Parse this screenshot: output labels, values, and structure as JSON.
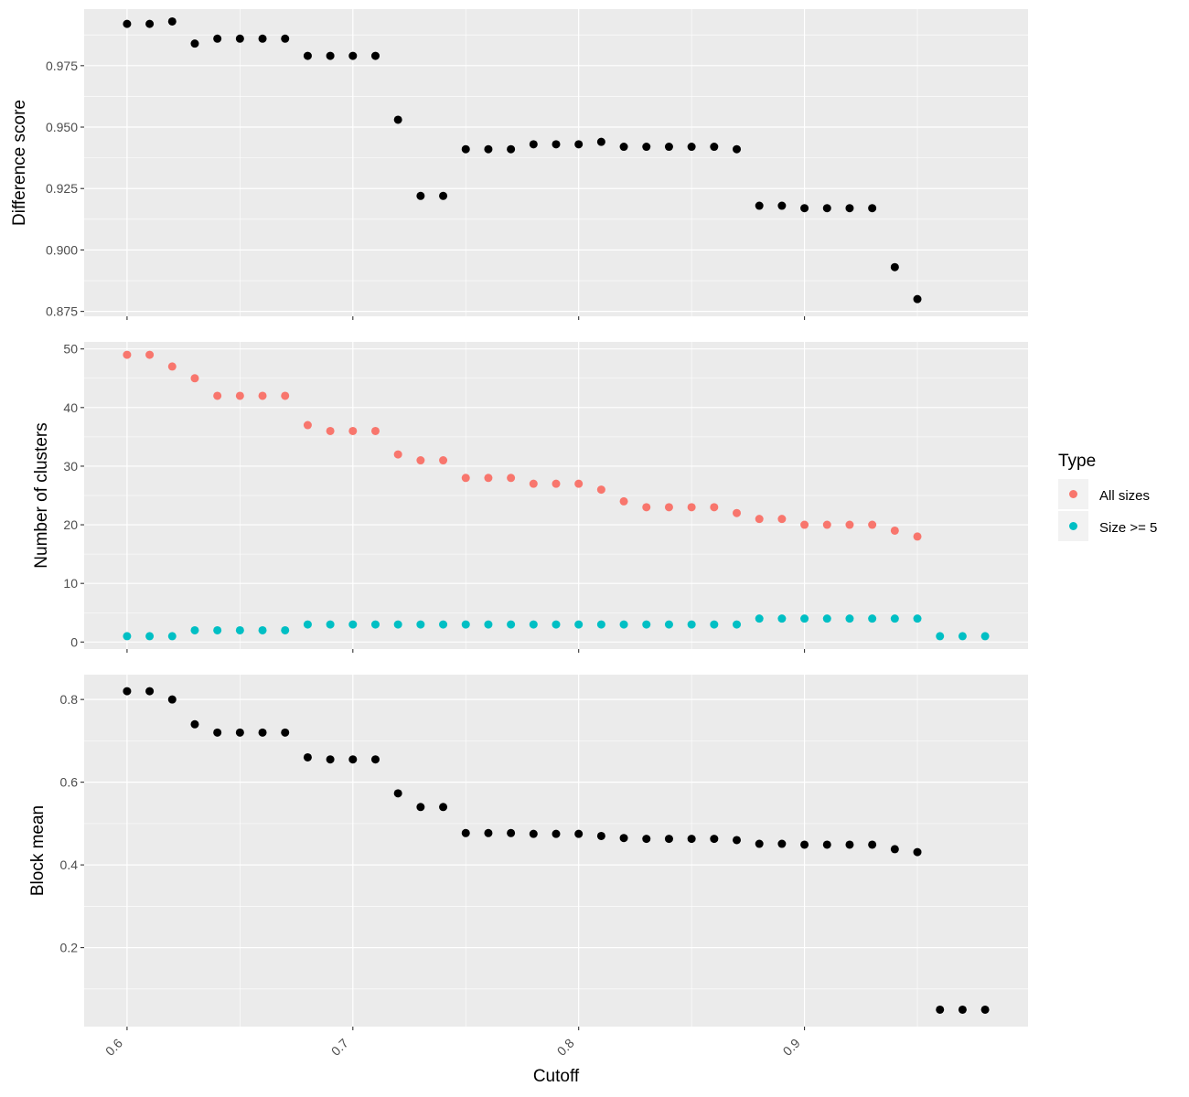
{
  "chart_data": [
    {
      "type": "scatter",
      "ylabel": "Difference score",
      "ylim": [
        0.873,
        0.998
      ],
      "yticks": [
        "0.875",
        "0.900",
        "0.925",
        "0.950",
        "0.975"
      ],
      "series": [
        {
          "color": "#000000",
          "x": [
            0.6,
            0.61,
            0.62,
            0.63,
            0.64,
            0.65,
            0.66,
            0.67,
            0.68,
            0.69,
            0.7,
            0.71,
            0.72,
            0.73,
            0.74,
            0.75,
            0.76,
            0.77,
            0.78,
            0.79,
            0.8,
            0.81,
            0.82,
            0.83,
            0.84,
            0.85,
            0.86,
            0.87,
            0.88,
            0.89,
            0.9,
            0.91,
            0.92,
            0.93,
            0.94,
            0.95
          ],
          "y": [
            0.992,
            0.992,
            0.993,
            0.984,
            0.986,
            0.986,
            0.986,
            0.986,
            0.979,
            0.979,
            0.979,
            0.979,
            0.953,
            0.922,
            0.922,
            0.941,
            0.941,
            0.941,
            0.943,
            0.943,
            0.943,
            0.944,
            0.942,
            0.942,
            0.942,
            0.942,
            0.942,
            0.941,
            0.918,
            0.918,
            0.917,
            0.917,
            0.917,
            0.917,
            0.893,
            0.88
          ]
        }
      ]
    },
    {
      "type": "scatter",
      "ylabel": "Number of clusters",
      "ylim": [
        -1.2,
        51.2
      ],
      "yticks": [
        "0",
        "10",
        "20",
        "30",
        "40",
        "50"
      ],
      "legend": {
        "title": "Type",
        "position": "right"
      },
      "series": [
        {
          "name": "All sizes",
          "color": "#F8766D",
          "x": [
            0.6,
            0.61,
            0.62,
            0.63,
            0.64,
            0.65,
            0.66,
            0.67,
            0.68,
            0.69,
            0.7,
            0.71,
            0.72,
            0.73,
            0.74,
            0.75,
            0.76,
            0.77,
            0.78,
            0.79,
            0.8,
            0.81,
            0.82,
            0.83,
            0.84,
            0.85,
            0.86,
            0.87,
            0.88,
            0.89,
            0.9,
            0.91,
            0.92,
            0.93,
            0.94,
            0.95
          ],
          "y": [
            49,
            49,
            47,
            45,
            42,
            42,
            42,
            42,
            37,
            36,
            36,
            36,
            32,
            31,
            31,
            28,
            28,
            28,
            27,
            27,
            27,
            26,
            24,
            23,
            23,
            23,
            23,
            22,
            21,
            21,
            20,
            20,
            20,
            20,
            19,
            18
          ]
        },
        {
          "name": "Size >= 5",
          "color": "#00BFC4",
          "x": [
            0.6,
            0.61,
            0.62,
            0.63,
            0.64,
            0.65,
            0.66,
            0.67,
            0.68,
            0.69,
            0.7,
            0.71,
            0.72,
            0.73,
            0.74,
            0.75,
            0.76,
            0.77,
            0.78,
            0.79,
            0.8,
            0.81,
            0.82,
            0.83,
            0.84,
            0.85,
            0.86,
            0.87,
            0.88,
            0.89,
            0.9,
            0.91,
            0.92,
            0.93,
            0.94,
            0.95,
            0.96,
            0.97,
            0.98
          ],
          "y": [
            1,
            1,
            1,
            2,
            2,
            2,
            2,
            2,
            3,
            3,
            3,
            3,
            3,
            3,
            3,
            3,
            3,
            3,
            3,
            3,
            3,
            3,
            3,
            3,
            3,
            3,
            3,
            3,
            4,
            4,
            4,
            4,
            4,
            4,
            4,
            4,
            1,
            1,
            1
          ]
        }
      ]
    },
    {
      "type": "scatter",
      "ylabel": "Block mean",
      "ylim": [
        0.009,
        0.86
      ],
      "yticks": [
        "0.2",
        "0.4",
        "0.6",
        "0.8"
      ],
      "series": [
        {
          "color": "#000000",
          "x": [
            0.6,
            0.61,
            0.62,
            0.63,
            0.64,
            0.65,
            0.66,
            0.67,
            0.68,
            0.69,
            0.7,
            0.71,
            0.72,
            0.73,
            0.74,
            0.75,
            0.76,
            0.77,
            0.78,
            0.79,
            0.8,
            0.81,
            0.82,
            0.83,
            0.84,
            0.85,
            0.86,
            0.87,
            0.88,
            0.89,
            0.9,
            0.91,
            0.92,
            0.93,
            0.94,
            0.95,
            0.96,
            0.97,
            0.98
          ],
          "y": [
            0.82,
            0.82,
            0.8,
            0.74,
            0.72,
            0.72,
            0.72,
            0.72,
            0.66,
            0.655,
            0.655,
            0.655,
            0.573,
            0.54,
            0.54,
            0.477,
            0.477,
            0.477,
            0.475,
            0.475,
            0.475,
            0.47,
            0.465,
            0.463,
            0.463,
            0.463,
            0.463,
            0.46,
            0.451,
            0.451,
            0.449,
            0.449,
            0.449,
            0.449,
            0.438,
            0.431,
            0.05,
            0.05,
            0.05
          ]
        }
      ]
    }
  ],
  "shared_x": {
    "xlabel": "Cutoff",
    "xlim": [
      0.581,
      0.999
    ],
    "xticks": [
      "0.6",
      "0.7",
      "0.8",
      "0.9"
    ]
  },
  "colors": {
    "panel_background": "#EBEBEB",
    "gridline": "#FFFFFF",
    "all_sizes": "#F8766D",
    "size_ge_5": "#00BFC4"
  }
}
